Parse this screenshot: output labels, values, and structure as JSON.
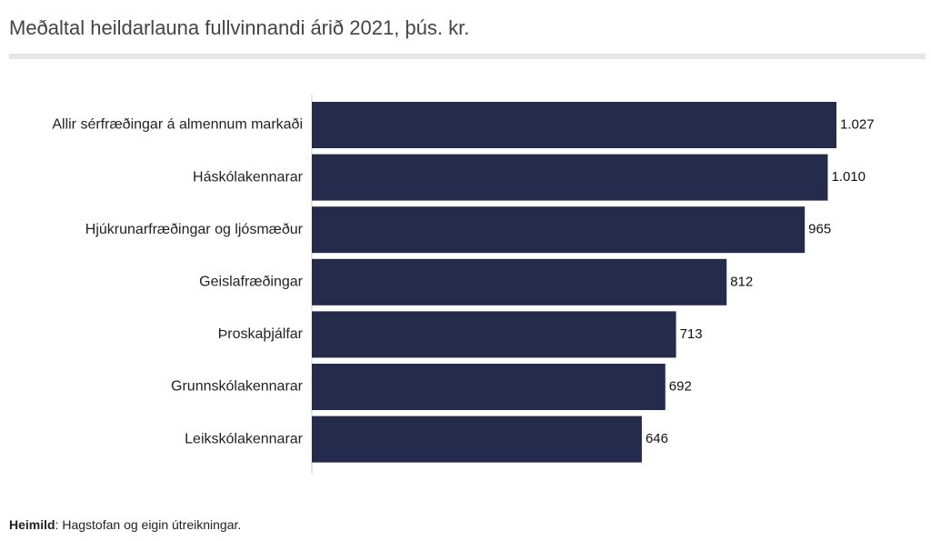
{
  "chart_data": {
    "type": "hbar",
    "title": "Meðaltal heildarlauna fullvinnandi árið 2021, þús. kr.",
    "categories": [
      "Allir sérfræðingar á almennum markaði",
      "Háskólakennarar",
      "Hjúkrunarfræðingar og ljósmæður",
      "Geislafræðingar",
      "Þroskaþjálfar",
      "Grunnskólakennarar",
      "Leikskólakennarar"
    ],
    "values": [
      1027,
      1010,
      965,
      812,
      713,
      692,
      646
    ],
    "value_labels": [
      "1.027",
      "1.010",
      "965",
      "812",
      "713",
      "692",
      "646"
    ],
    "color": "#252b4a",
    "source_label": "Heimild",
    "source_text": ": Hagstofan og eigin útreikningar."
  }
}
